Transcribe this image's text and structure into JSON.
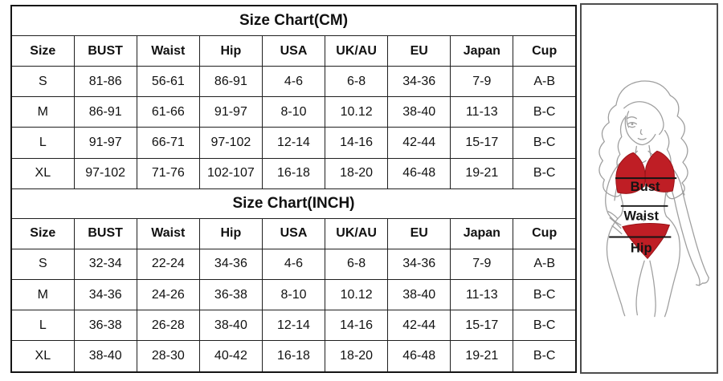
{
  "page": {
    "background": "#ffffff"
  },
  "chart_data": [
    {
      "type": "table",
      "title": "Size Chart(CM)",
      "columns": [
        "Size",
        "BUST",
        "Waist",
        "Hip",
        "USA",
        "UK/AU",
        "EU",
        "Japan",
        "Cup"
      ],
      "rows": [
        [
          "S",
          "81-86",
          "56-61",
          "86-91",
          "4-6",
          "6-8",
          "34-36",
          "7-9",
          "A-B"
        ],
        [
          "M",
          "86-91",
          "61-66",
          "91-97",
          "8-10",
          "10.12",
          "38-40",
          "11-13",
          "B-C"
        ],
        [
          "L",
          "91-97",
          "66-71",
          "97-102",
          "12-14",
          "14-16",
          "42-44",
          "15-17",
          "B-C"
        ],
        [
          "XL",
          "97-102",
          "71-76",
          "102-107",
          "16-18",
          "18-20",
          "46-48",
          "19-21",
          "B-C"
        ]
      ]
    },
    {
      "type": "table",
      "title": "Size Chart(INCH)",
      "columns": [
        "Size",
        "BUST",
        "Waist",
        "Hip",
        "USA",
        "UK/AU",
        "EU",
        "Japan",
        "Cup"
      ],
      "rows": [
        [
          "S",
          "32-34",
          "22-24",
          "34-36",
          "4-6",
          "6-8",
          "34-36",
          "7-9",
          "A-B"
        ],
        [
          "M",
          "34-36",
          "24-26",
          "36-38",
          "8-10",
          "10.12",
          "38-40",
          "11-13",
          "B-C"
        ],
        [
          "L",
          "36-38",
          "26-28",
          "38-40",
          "12-14",
          "14-16",
          "42-44",
          "15-17",
          "B-C"
        ],
        [
          "XL",
          "38-40",
          "28-30",
          "40-42",
          "16-18",
          "18-20",
          "46-48",
          "19-21",
          "B-C"
        ]
      ]
    }
  ],
  "figure": {
    "labels": {
      "bust": "Bust",
      "waist": "Waist",
      "hip": "Hip"
    },
    "colors": {
      "bikini_red": "#bf1e25",
      "bikini_red_edge": "#991318",
      "sketch_line": "#9f9f9f",
      "measure_line": "#141414",
      "table_border": "#1f1f1f",
      "box_border": "#4d4d4d"
    }
  }
}
